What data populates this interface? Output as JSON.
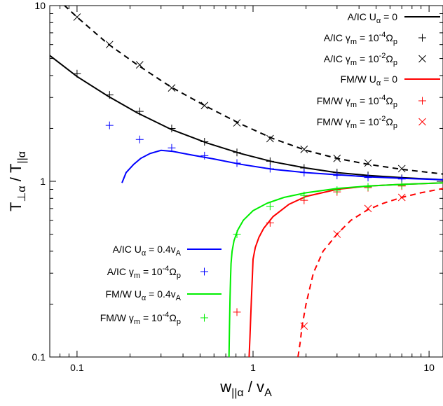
{
  "chart_data": {
    "type": "line",
    "xlabel": "w||α / vA",
    "ylabel": "T⊥α / T||α",
    "xscale": "log",
    "yscale": "log",
    "xlim": [
      0.07,
      12
    ],
    "ylim": [
      0.1,
      10
    ],
    "x_tick_labels": [
      "0.1",
      "1",
      "10"
    ],
    "y_tick_labels": [
      "0.1",
      "1",
      "10"
    ],
    "x_ticks": [
      0.1,
      1,
      10
    ],
    "y_ticks": [
      0.1,
      1,
      10
    ],
    "grid": false,
    "legend_top": [
      {
        "text": "A/IC U",
        "sub": "α",
        "post": " = 0",
        "series": 0
      },
      {
        "text": "A/IC γ",
        "sub": "m",
        "post": " = 10",
        "sup": "-4",
        "post2": "Ω",
        "sub2": "p",
        "series": 1
      },
      {
        "text": "A/IC γ",
        "sub": "m",
        "post": " = 10",
        "sup": "-2",
        "post2": "Ω",
        "sub2": "p",
        "series": 2
      },
      {
        "text": "FM/W U",
        "sub": "α",
        "post": " = 0",
        "series": 3
      },
      {
        "text": "FM/W γ",
        "sub": "m",
        "post": " = 10",
        "sup": "-4",
        "post2": "Ω",
        "sub2": "p",
        "series": 4
      },
      {
        "text": "FM/W γ",
        "sub": "m",
        "post": " = 10",
        "sup": "-2",
        "post2": "Ω",
        "sub2": "p",
        "series": 5
      }
    ],
    "legend_bottom": [
      {
        "text": "A/IC U",
        "sub": "α",
        "post": " = 0.4v",
        "sub2": "A",
        "series": 6
      },
      {
        "text": "A/IC γ",
        "sub": "m",
        "post": " = 10",
        "sup": "-4",
        "post2": "Ω",
        "sub2": "p",
        "series": 7
      },
      {
        "text": "FM/W U",
        "sub": "α",
        "post": " = 0.4v",
        "sub2": "A",
        "series": 8
      },
      {
        "text": "FM/W γ",
        "sub": "m",
        "post": " = 10",
        "sup": "-4",
        "post2": "Ω",
        "sub2": "p",
        "series": 9
      }
    ],
    "series": [
      {
        "style": "line",
        "color": "#000000",
        "dash": false,
        "x": [
          0.07,
          0.1,
          0.15,
          0.22,
          0.34,
          0.55,
          0.85,
          1.3,
          2.0,
          3.0,
          4.5,
          7.0,
          12
        ],
        "y": [
          5.2,
          3.95,
          3.05,
          2.45,
          1.98,
          1.65,
          1.44,
          1.29,
          1.19,
          1.12,
          1.08,
          1.05,
          1.02
        ]
      },
      {
        "style": "plus",
        "color": "#000000",
        "x": [
          0.1,
          0.153,
          0.227,
          0.345,
          0.53,
          0.81,
          1.25,
          1.95,
          3.0,
          4.5,
          7.0
        ],
        "y": [
          4.1,
          3.1,
          2.5,
          2.0,
          1.68,
          1.46,
          1.3,
          1.19,
          1.12,
          1.08,
          1.04
        ]
      },
      {
        "style": "x",
        "color": "#000000",
        "x": [
          0.1,
          0.153,
          0.227,
          0.345,
          0.53,
          0.81,
          1.25,
          1.95,
          3.0,
          4.5,
          7.0
        ],
        "y": [
          8.6,
          6.0,
          4.6,
          3.4,
          2.7,
          2.15,
          1.75,
          1.52,
          1.35,
          1.27,
          1.18
        ]
      },
      {
        "style": "line",
        "color": "#ff0000",
        "dash": false,
        "x": [
          0.95,
          0.96,
          0.97,
          0.98,
          0.99,
          0.995,
          1.0,
          1.03,
          1.08,
          1.15,
          1.3,
          1.6,
          2.0,
          3.0,
          4.5,
          7.0,
          12
        ],
        "y": [
          0.1,
          0.13,
          0.17,
          0.22,
          0.28,
          0.32,
          0.36,
          0.42,
          0.48,
          0.54,
          0.63,
          0.74,
          0.82,
          0.9,
          0.94,
          0.96,
          0.98
        ]
      },
      {
        "style": "plus",
        "color": "#ff0000",
        "x": [
          0.81,
          1.25,
          1.95,
          3.0,
          4.5,
          7.0
        ],
        "y": [
          0.18,
          0.58,
          0.78,
          0.87,
          0.92,
          0.94
        ]
      },
      {
        "style": "x",
        "color": "#ff0000",
        "x": [
          1.95,
          3.0,
          4.5,
          7.0
        ],
        "y": [
          0.15,
          0.5,
          0.7,
          0.81
        ]
      },
      {
        "style": "line",
        "color": "#0000ff",
        "dash": false,
        "x": [
          0.18,
          0.19,
          0.21,
          0.23,
          0.26,
          0.3,
          0.35,
          0.45,
          0.6,
          0.85,
          1.3,
          2.0,
          3.0,
          4.5,
          7.0,
          12
        ],
        "y": [
          0.98,
          1.12,
          1.25,
          1.35,
          1.44,
          1.5,
          1.48,
          1.41,
          1.34,
          1.25,
          1.17,
          1.12,
          1.09,
          1.06,
          1.04,
          1.02
        ]
      },
      {
        "style": "plus",
        "color": "#0000ff",
        "x": [
          0.153,
          0.227,
          0.345,
          0.53,
          0.81,
          1.25,
          1.95,
          3.0,
          4.5,
          7.0
        ],
        "y": [
          2.08,
          1.73,
          1.55,
          1.4,
          1.27,
          1.18,
          1.12,
          1.08,
          1.05,
          1.03
        ]
      },
      {
        "style": "line",
        "color": "#00ee00",
        "dash": false,
        "x": [
          0.73,
          0.735,
          0.74,
          0.745,
          0.75,
          0.76,
          0.78,
          0.82,
          0.88,
          1.0,
          1.2,
          1.5,
          2.0,
          3.0,
          4.5,
          7.0,
          12
        ],
        "y": [
          0.1,
          0.15,
          0.22,
          0.28,
          0.34,
          0.4,
          0.46,
          0.53,
          0.6,
          0.68,
          0.75,
          0.81,
          0.86,
          0.91,
          0.94,
          0.96,
          0.98
        ]
      },
      {
        "style": "plus",
        "color": "#00ee00",
        "x": [
          0.81,
          1.25,
          1.95,
          3.0,
          4.5,
          7.0
        ],
        "y": [
          0.5,
          0.72,
          0.83,
          0.89,
          0.93,
          0.95
        ]
      },
      {
        "style": "line",
        "color": "#ff0000",
        "dash": true,
        "x": [
          1.8,
          1.85,
          1.9,
          2.0,
          2.2,
          2.5,
          3.0,
          3.6,
          4.5,
          5.5,
          7.0,
          9.0,
          12
        ],
        "y": [
          0.1,
          0.12,
          0.15,
          0.2,
          0.3,
          0.4,
          0.5,
          0.6,
          0.69,
          0.75,
          0.81,
          0.86,
          0.91
        ]
      },
      {
        "style": "line",
        "color": "#000000",
        "dash": true,
        "x": [
          0.07,
          0.085,
          0.1,
          0.15,
          0.22,
          0.34,
          0.55,
          0.85,
          1.3,
          2.0,
          3.0,
          4.5,
          7.0,
          12
        ],
        "y": [
          12,
          10,
          8.6,
          6.05,
          4.6,
          3.45,
          2.65,
          2.12,
          1.75,
          1.5,
          1.35,
          1.25,
          1.17,
          1.1
        ]
      }
    ]
  }
}
